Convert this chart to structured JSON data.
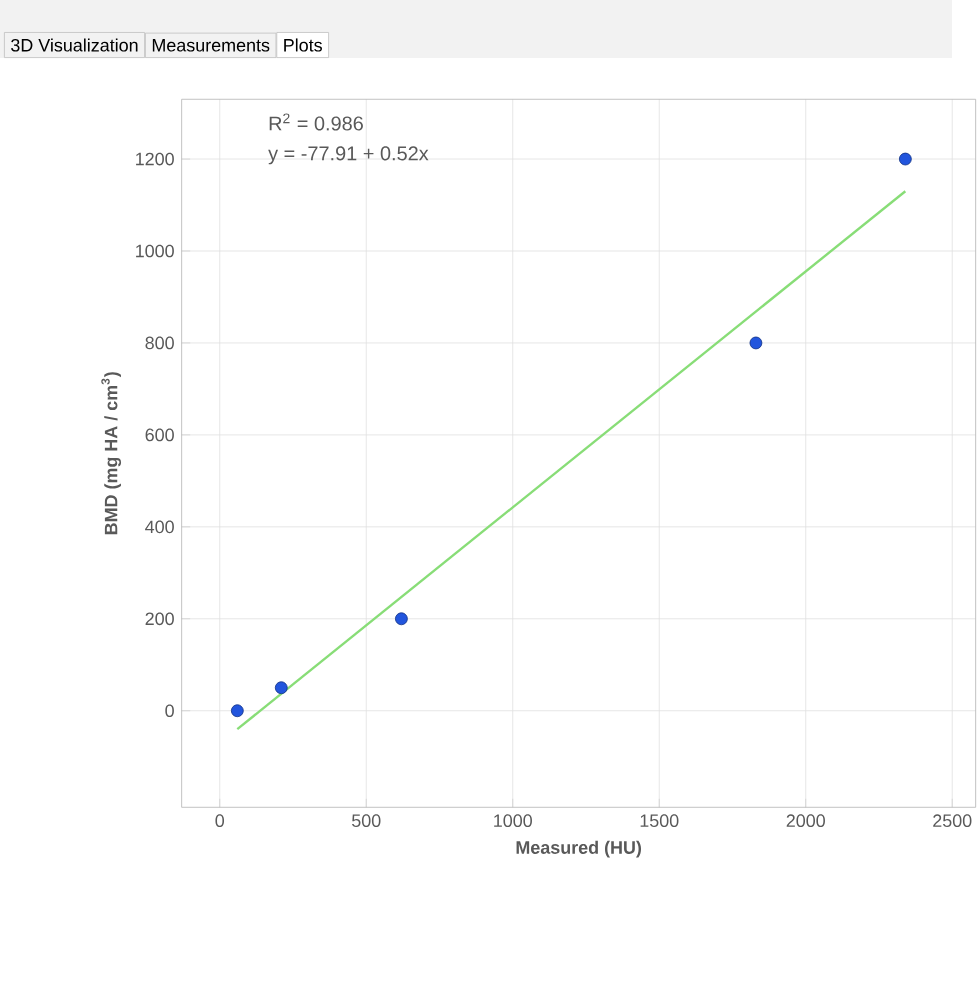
{
  "chart_data": {
    "type": "scatter",
    "xlabel": "Measured (HU)",
    "ylabel": "BMD (mg HA / cm$^{3}$)",
    "annotations": [
      "R$^{2}$ = 0.986",
      "y = -77.91 + 0.52x",
      "3D Visualization",
      "Measurements",
      "Plots"
    ],
    "series": [
      {
        "type": "line",
        "color": "#88dd77",
        "x": [
          60,
          2340
        ],
        "values": [
          -40,
          1130
        ],
        "marker": "none"
      },
      {
        "color": "#2255dd",
        "x": [
          60,
          210,
          620,
          1830,
          2340
        ],
        "values": [
          0,
          50,
          200,
          800,
          1200
        ],
        "marker": "circle"
      }
    ],
    "xlim": [
      -130,
      2580
    ],
    "ylim": [
      -210,
      1330
    ],
    "xticks": [
      0,
      500,
      1000,
      1500,
      2000,
      2500
    ],
    "yticks": [
      0,
      200,
      400,
      600,
      800,
      1000,
      1200
    ],
    "grid": true
  }
}
